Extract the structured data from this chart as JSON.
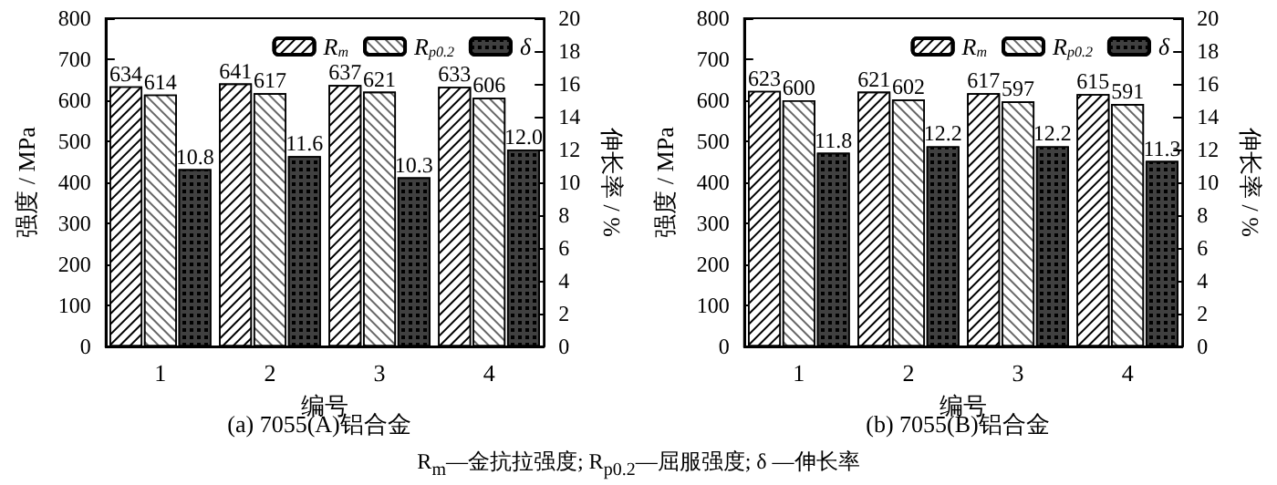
{
  "chart_data": [
    {
      "type": "bar",
      "title": "(a) 7055(A)铝合金",
      "xlabel": "编号",
      "ylabel": "强度 / MPa",
      "y2label": "伸长率 / %",
      "categories": [
        "1",
        "2",
        "3",
        "4"
      ],
      "series": [
        {
          "name": "R$_{m}$",
          "color": "#ffffff",
          "values": [
            634,
            641,
            637,
            633
          ]
        },
        {
          "name": "R$_{p0.2}$",
          "color": "#ffffff",
          "values": [
            614,
            617,
            621,
            606
          ]
        },
        {
          "name": "δ",
          "color": "#404040",
          "axis": "y2",
          "values": [
            10.8,
            11.6,
            10.3,
            12.0
          ],
          "value_labels": [
            "10.8",
            "11.6",
            "10.3",
            "12.0"
          ]
        }
      ],
      "ylim": [
        0,
        800
      ],
      "yticks": [
        0,
        100,
        200,
        300,
        400,
        500,
        600,
        700,
        800
      ],
      "y2lim": [
        0,
        20
      ],
      "y2ticks": [
        0,
        2,
        4,
        6,
        8,
        10,
        12,
        14,
        16,
        18,
        20
      ],
      "data_labels": true,
      "legend": "top right",
      "grid": false,
      "annotations": [
        "R$_{m}$—金抗拉强度; R$_{p0.2}$—屈服强度; δ —伸长率"
      ]
    },
    {
      "type": "bar",
      "title": "(b) 7055(B)铝合金",
      "xlabel": "编号",
      "ylabel": "强度 / MPa",
      "y2label": "伸长率 / %",
      "categories": [
        "1",
        "2",
        "3",
        "4"
      ],
      "series": [
        {
          "name": "R$_{m}$",
          "color": "#ffffff",
          "values": [
            623,
            621,
            617,
            615
          ]
        },
        {
          "name": "R$_{p0.2}$",
          "color": "#ffffff",
          "values": [
            600,
            602,
            597,
            591
          ]
        },
        {
          "name": "δ",
          "color": "#404040",
          "axis": "y2",
          "values": [
            11.8,
            12.2,
            12.2,
            11.3
          ],
          "value_labels": [
            "11.8",
            "12.2",
            "12.2",
            "11.3"
          ]
        }
      ],
      "ylim": [
        0,
        800
      ],
      "yticks": [
        0,
        100,
        200,
        300,
        400,
        500,
        600,
        700,
        800
      ],
      "y2lim": [
        0,
        20
      ],
      "y2ticks": [
        0,
        2,
        4,
        6,
        8,
        10,
        12,
        14,
        16,
        18,
        20
      ],
      "data_labels": true,
      "legend": "top right",
      "grid": false
    }
  ]
}
